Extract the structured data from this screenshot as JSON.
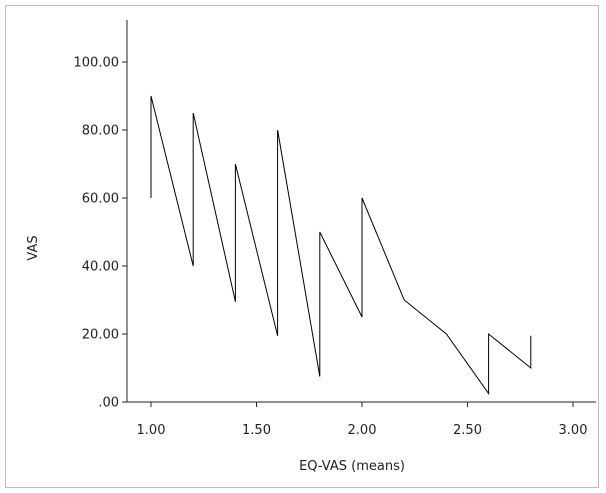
{
  "chart_data": {
    "type": "line",
    "title": "",
    "xlabel": "EQ-VAS (means)",
    "ylabel": "VAS",
    "xlim": [
      0.85,
      3.1
    ],
    "ylim": [
      0,
      113
    ],
    "x_ticks": [
      1.0,
      1.5,
      2.0,
      2.5,
      3.0
    ],
    "x_tick_labels": [
      "1.00",
      "1.50",
      "2.00",
      "2.50",
      "3.00"
    ],
    "y_ticks": [
      0,
      20,
      40,
      60,
      80,
      100
    ],
    "y_tick_labels": [
      ".00",
      "20.00",
      "40.00",
      "60.00",
      "80.00",
      "100.00"
    ],
    "grid": false,
    "series": [
      {
        "x": [
          1.0,
          1.0,
          1.2,
          1.2,
          1.4,
          1.4,
          1.6,
          1.6,
          1.8,
          1.8,
          2.0,
          2.0,
          2.2,
          2.4,
          2.6,
          2.6,
          2.8,
          2.8
        ],
        "y": [
          60,
          90,
          40,
          85,
          29.5,
          70,
          19.5,
          80,
          7.5,
          50,
          25,
          60,
          30,
          20,
          2.5,
          20,
          10,
          19.5
        ],
        "color": "#000000"
      }
    ]
  }
}
